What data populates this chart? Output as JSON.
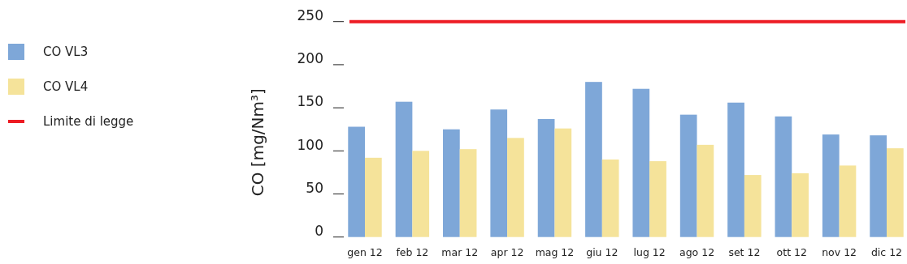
{
  "chart_data": {
    "type": "bar",
    "ylabel": "CO [mg/Nm³]",
    "categories": [
      "gen 12",
      "feb 12",
      "mar 12",
      "apr 12",
      "mag 12",
      "giu 12",
      "lug 12",
      "ago 12",
      "set 12",
      "ott 12",
      "nov 12",
      "dic 12"
    ],
    "series": [
      {
        "name": "CO VL3",
        "color": "#7ea7d8",
        "values": [
          128,
          157,
          125,
          148,
          137,
          180,
          172,
          142,
          156,
          140,
          119,
          118
        ]
      },
      {
        "name": "CO VL4",
        "color": "#f5e39a",
        "values": [
          92,
          100,
          102,
          115,
          126,
          90,
          88,
          107,
          72,
          74,
          83,
          103
        ]
      }
    ],
    "ylim": [
      0,
      250
    ],
    "yticks": [
      0,
      50,
      100,
      150,
      200,
      250
    ],
    "ref_lines": [
      {
        "axis": "y",
        "value": 250,
        "label": "Limite di legge",
        "color": "#ed1c24"
      }
    ],
    "legend": "left",
    "grid": false
  }
}
